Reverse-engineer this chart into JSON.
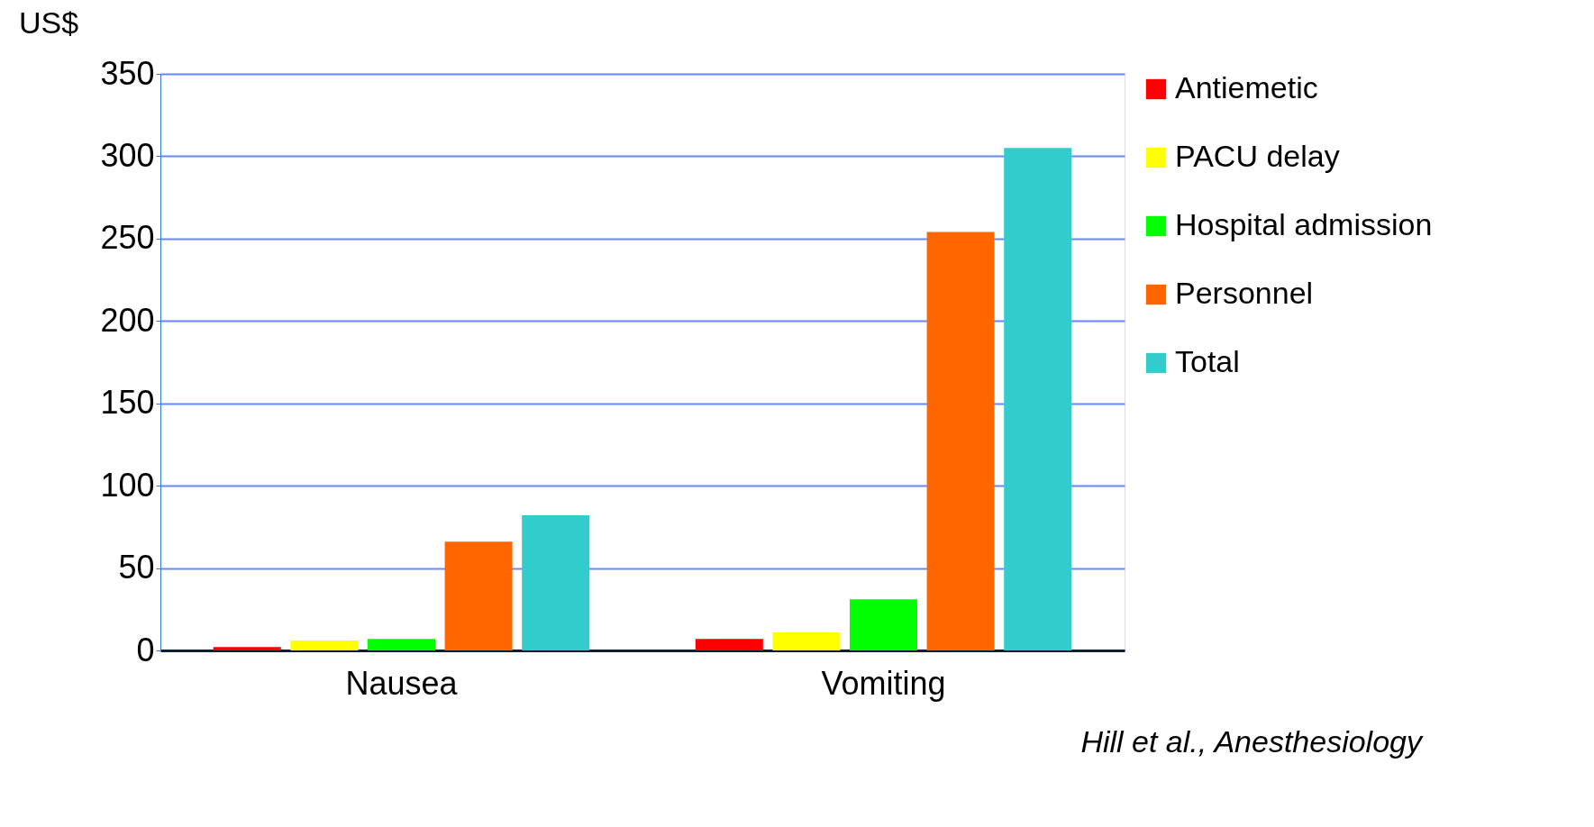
{
  "chart_data": {
    "type": "bar",
    "ylabel": "US$",
    "categories": [
      "Nausea",
      "Vomiting"
    ],
    "series": [
      {
        "name": "Antiemetic",
        "color": "#ff0000",
        "values": [
          2,
          7
        ]
      },
      {
        "name": "PACU delay",
        "color": "#ffff00",
        "values": [
          6,
          11
        ]
      },
      {
        "name": "Hospital admission",
        "color": "#00ff00",
        "values": [
          7,
          31
        ]
      },
      {
        "name": "Personnel",
        "color": "#ff6600",
        "values": [
          66,
          254
        ]
      },
      {
        "name": "Total",
        "color": "#33cccc",
        "values": [
          82,
          305
        ]
      }
    ],
    "ylim": [
      0,
      350
    ],
    "yticks": [
      0,
      50,
      100,
      150,
      200,
      250,
      300,
      350
    ],
    "grid": "y",
    "legend": "right",
    "annotations": [
      "Hill et al., Anesthesiology"
    ]
  }
}
